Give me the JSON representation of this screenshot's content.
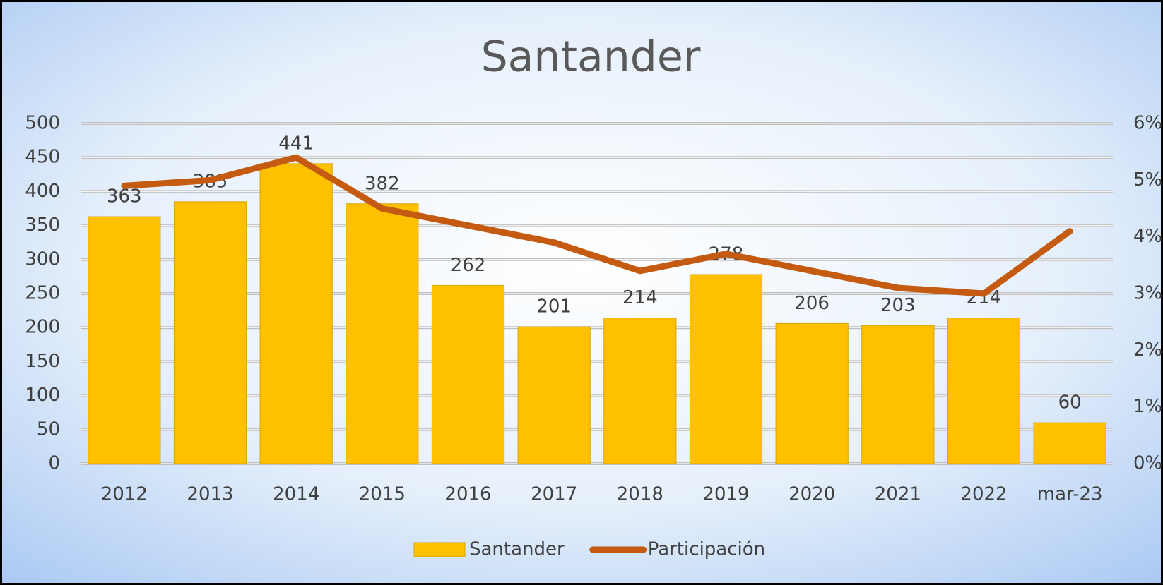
{
  "chart_data": {
    "type": "bar",
    "title": "Santander",
    "categories": [
      "2012",
      "2013",
      "2014",
      "2015",
      "2016",
      "2017",
      "2018",
      "2019",
      "2020",
      "2021",
      "2022",
      "mar-23"
    ],
    "series": [
      {
        "name": "Santander",
        "type": "bar",
        "color": "#ffc000",
        "values": [
          363,
          385,
          441,
          382,
          262,
          201,
          214,
          278,
          206,
          203,
          214,
          60
        ]
      },
      {
        "name": "Participación",
        "type": "line",
        "color": "#c55a11",
        "axis": "y2",
        "values": [
          4.9,
          5.0,
          5.4,
          4.5,
          4.2,
          3.9,
          3.4,
          3.7,
          3.4,
          3.1,
          3.0,
          4.1
        ]
      }
    ],
    "ylim": [
      0,
      500
    ],
    "yticks": [
      0,
      50,
      100,
      150,
      200,
      250,
      300,
      350,
      400,
      450,
      500
    ],
    "y2lim": [
      0,
      6
    ],
    "y2ticks": [
      {
        "value": 0,
        "label": "0%"
      },
      {
        "value": 1,
        "label": "1%"
      },
      {
        "value": 2,
        "label": "2%"
      },
      {
        "value": 3,
        "label": "3%"
      },
      {
        "value": 4,
        "label": "4%"
      },
      {
        "value": 5,
        "label": "5%"
      },
      {
        "value": 6,
        "label": "6%"
      }
    ],
    "grid": true,
    "legend": "bottom"
  }
}
